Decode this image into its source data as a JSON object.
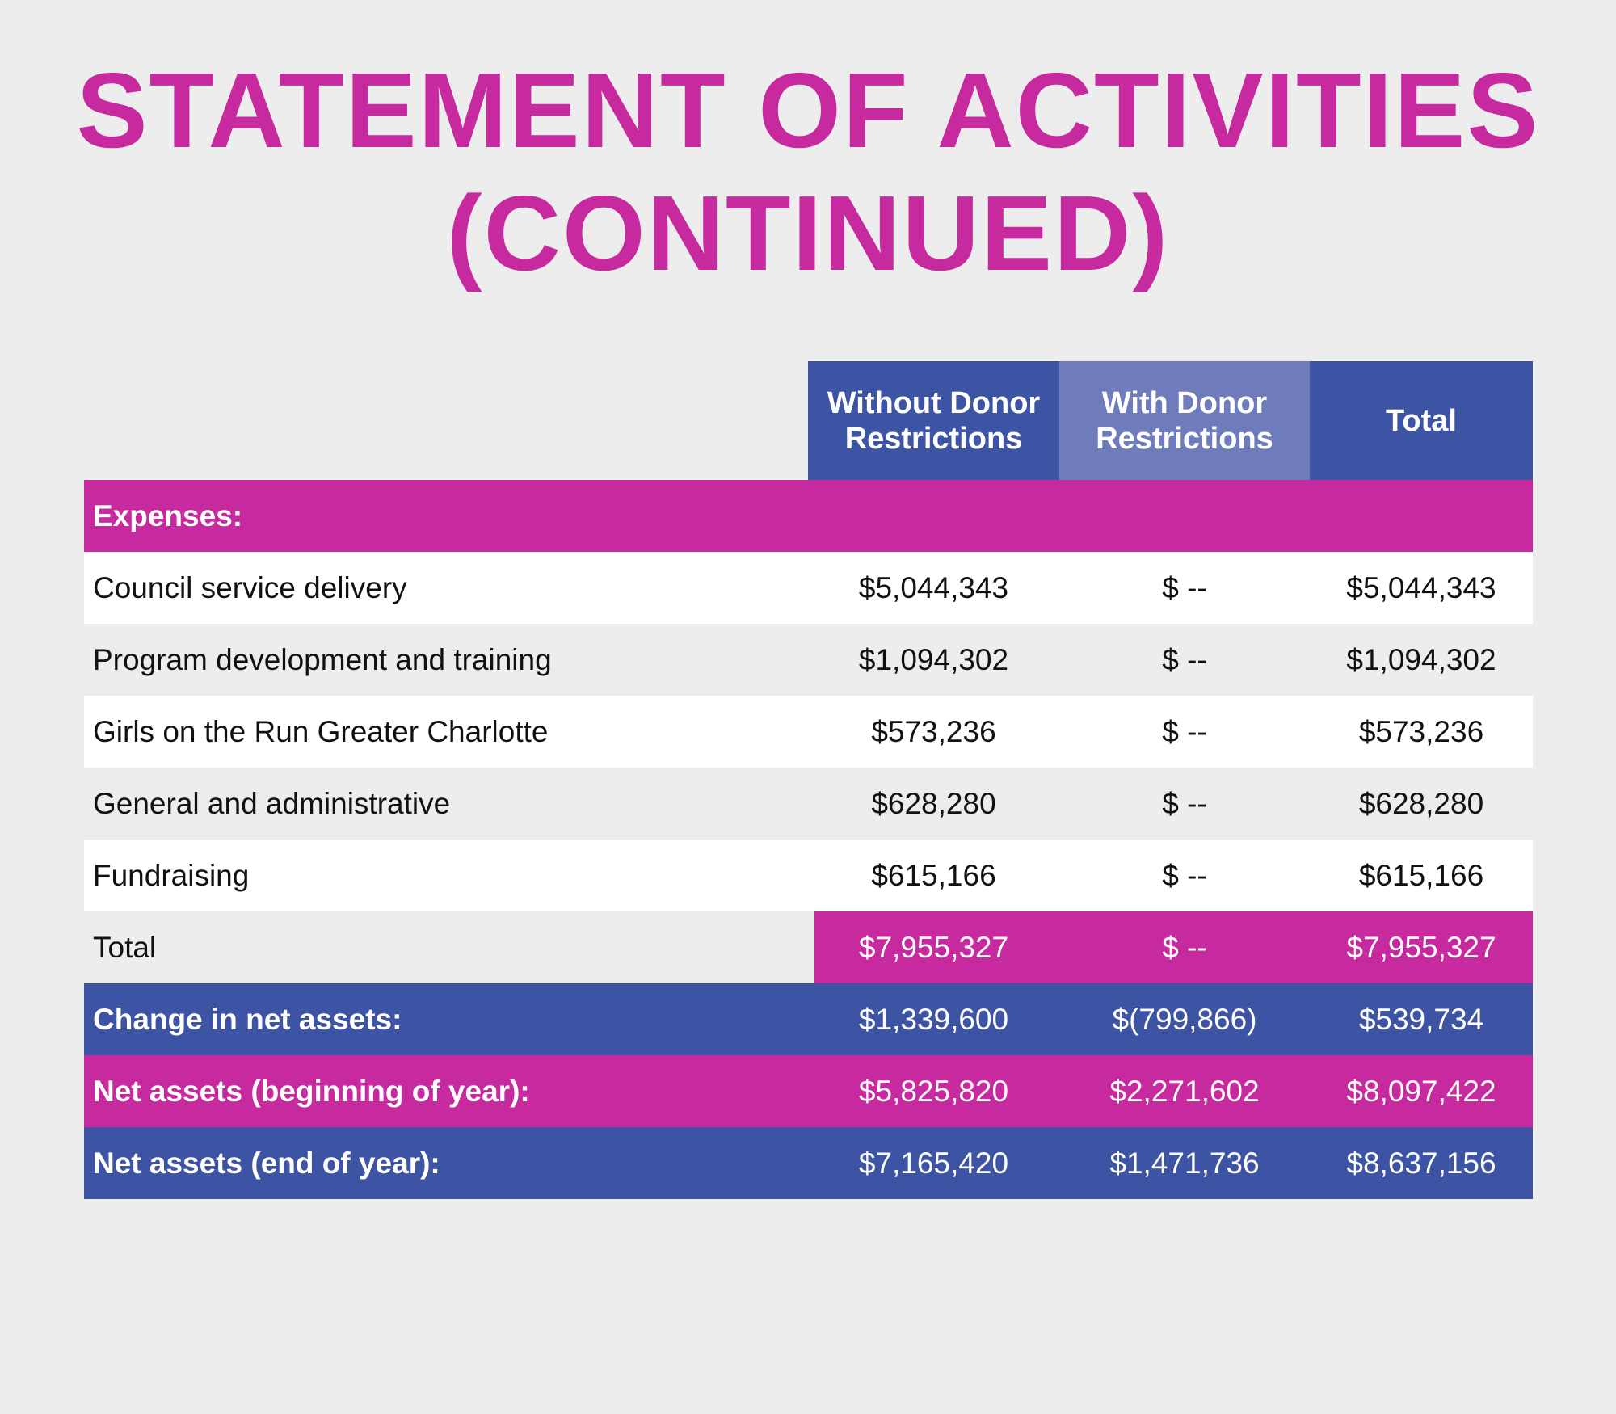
{
  "title": {
    "line1": "STATEMENT OF ACTIVITIES",
    "line2": "(CONTINUED)"
  },
  "columns": {
    "without": [
      "Without Donor",
      "Restrictions"
    ],
    "with": [
      "With Donor",
      "Restrictions"
    ],
    "total": "Total"
  },
  "section_label": "Expenses:",
  "expense_rows": [
    {
      "label": "Council service delivery",
      "without": "$5,044,343",
      "with": "$ --",
      "total": "$5,044,343"
    },
    {
      "label": "Program development and training",
      "without": "$1,094,302",
      "with": "$ --",
      "total": "$1,094,302"
    },
    {
      "label": "Girls on the Run Greater Charlotte",
      "without": "$573,236",
      "with": "$ --",
      "total": "$573,236"
    },
    {
      "label": "General and administrative",
      "without": "$628,280",
      "with": "$ --",
      "total": "$628,280"
    },
    {
      "label": "Fundraising",
      "without": "$615,166",
      "with": "$ --",
      "total": "$615,166"
    }
  ],
  "total_row": {
    "label": "Total",
    "without": "$7,955,327",
    "with": "$ --",
    "total": "$7,955,327"
  },
  "change_row": {
    "label": "Change in net assets:",
    "without": "$1,339,600",
    "with": "$(799,866)",
    "total": "$539,734"
  },
  "beginning_row": {
    "label": "Net assets (beginning of year):",
    "without": "$5,825,820",
    "with": "$2,271,602",
    "total": "$8,097,422"
  },
  "end_row": {
    "label": "Net assets (end of year):",
    "without": "$7,165,420",
    "with": "$1,471,736",
    "total": "$8,637,156"
  },
  "colors": {
    "magenta": "#c72a9f",
    "blue": "#3d53a3",
    "light_blue": "#6f7cbc",
    "background": "#ededed"
  }
}
